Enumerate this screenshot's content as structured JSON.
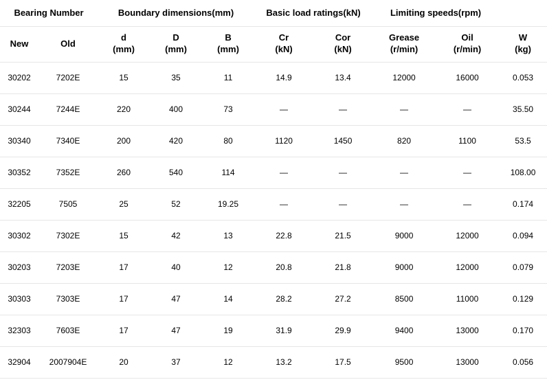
{
  "table": {
    "groupHeaders": {
      "bearing": "Bearing Number",
      "boundary": "Boundary dimensions(mm)",
      "load": "Basic load ratings(kN)",
      "speed": "Limiting speeds(rpm)",
      "blank": ""
    },
    "subHeaders": {
      "new": "New",
      "old": "Old",
      "d": "d\n(mm)",
      "D": "D\n(mm)",
      "B": "B\n(mm)",
      "cr": "Cr\n(kN)",
      "cor": "Cor\n(kN)",
      "grease": "Grease\n(r/min)",
      "oil": "Oil\n(r/min)",
      "w": "W\n(kg)"
    },
    "rows": [
      {
        "new": "30202",
        "old": "7202E",
        "d": "15",
        "D": "35",
        "B": "11",
        "cr": "14.9",
        "cor": "13.4",
        "grease": "12000",
        "oil": "16000",
        "w": "0.053"
      },
      {
        "new": "30244",
        "old": "7244E",
        "d": "220",
        "D": "400",
        "B": "73",
        "cr": "—",
        "cor": "—",
        "grease": "—",
        "oil": "—",
        "w": "35.50"
      },
      {
        "new": "30340",
        "old": "7340E",
        "d": "200",
        "D": "420",
        "B": "80",
        "cr": "1120",
        "cor": "1450",
        "grease": "820",
        "oil": "1100",
        "w": "53.5"
      },
      {
        "new": "30352",
        "old": "7352E",
        "d": "260",
        "D": "540",
        "B": "114",
        "cr": "—",
        "cor": "—",
        "grease": "—",
        "oil": "—",
        "w": "108.00"
      },
      {
        "new": "32205",
        "old": "7505",
        "d": "25",
        "D": "52",
        "B": "19.25",
        "cr": "—",
        "cor": "—",
        "grease": "—",
        "oil": "—",
        "w": "0.174"
      },
      {
        "new": "30302",
        "old": "7302E",
        "d": "15",
        "D": "42",
        "B": "13",
        "cr": "22.8",
        "cor": "21.5",
        "grease": "9000",
        "oil": "12000",
        "w": "0.094"
      },
      {
        "new": "30203",
        "old": "7203E",
        "d": "17",
        "D": "40",
        "B": "12",
        "cr": "20.8",
        "cor": "21.8",
        "grease": "9000",
        "oil": "12000",
        "w": "0.079"
      },
      {
        "new": "30303",
        "old": "7303E",
        "d": "17",
        "D": "47",
        "B": "14",
        "cr": "28.2",
        "cor": "27.2",
        "grease": "8500",
        "oil": "11000",
        "w": "0.129"
      },
      {
        "new": "32303",
        "old": "7603E",
        "d": "17",
        "D": "47",
        "B": "19",
        "cr": "31.9",
        "cor": "29.9",
        "grease": "9400",
        "oil": "13000",
        "w": "0.170"
      },
      {
        "new": "32904",
        "old": "2007904E",
        "d": "20",
        "D": "37",
        "B": "12",
        "cr": "13.2",
        "cor": "17.5",
        "grease": "9500",
        "oil": "13000",
        "w": "0.056"
      }
    ],
    "colors": {
      "border": "#e6e6e6",
      "text": "#000000",
      "background": "#ffffff"
    },
    "fontsize": {
      "header": 13,
      "body": 12
    }
  }
}
